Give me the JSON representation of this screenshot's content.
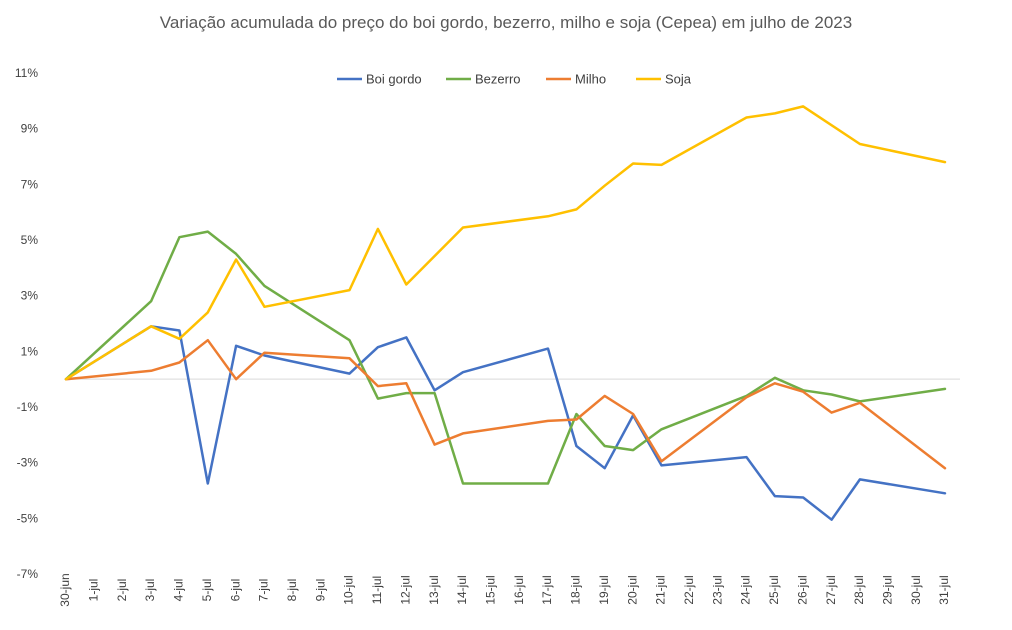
{
  "chart_data": {
    "type": "line",
    "title": "Variação acumulada do preço do boi gordo, bezerro, milho e soja (Cepea) em julho de 2023",
    "xlabel": "",
    "ylabel": "",
    "ylim": [
      -7,
      11
    ],
    "y_ticks": [
      -7,
      -5,
      -3,
      -1,
      1,
      3,
      5,
      7,
      9,
      11
    ],
    "y_tick_labels": [
      "-7%",
      "-5%",
      "-3%",
      "-1%",
      "1%",
      "3%",
      "5%",
      "7%",
      "9%",
      "11%"
    ],
    "x": [
      "30-jun",
      "1-jul",
      "2-jul",
      "3-jul",
      "4-jul",
      "5-jul",
      "6-jul",
      "7-jul",
      "8-jul",
      "9-jul",
      "10-jul",
      "11-jul",
      "12-jul",
      "13-jul",
      "14-jul",
      "15-jul",
      "16-jul",
      "17-jul",
      "18-jul",
      "19-jul",
      "20-jul",
      "21-jul",
      "22-jul",
      "23-jul",
      "24-jul",
      "25-jul",
      "26-jul",
      "27-jul",
      "28-jul",
      "29-jul",
      "30-jul",
      "31-jul"
    ],
    "legend_position": "top",
    "grid": false,
    "zero_line": true,
    "series": [
      {
        "name": "Boi gordo",
        "color": "#4472C4",
        "values": [
          0,
          null,
          null,
          1.9,
          1.75,
          -3.75,
          1.2,
          0.85,
          null,
          null,
          0.2,
          1.15,
          1.5,
          -0.4,
          0.25,
          null,
          null,
          1.1,
          -2.4,
          -3.2,
          -1.3,
          -3.1,
          null,
          null,
          -2.8,
          -4.2,
          -4.25,
          -5.05,
          -3.6,
          null,
          null,
          -4.1
        ]
      },
      {
        "name": "Bezerro",
        "color": "#70AD47",
        "values": [
          0,
          null,
          null,
          2.8,
          5.1,
          5.3,
          4.5,
          3.35,
          null,
          null,
          1.4,
          -0.7,
          -0.5,
          -0.5,
          -3.75,
          null,
          null,
          -3.75,
          -1.25,
          -2.4,
          -2.55,
          -1.8,
          null,
          null,
          -0.6,
          0.05,
          -0.4,
          -0.55,
          -0.8,
          null,
          null,
          -0.35
        ]
      },
      {
        "name": "Milho",
        "color": "#ED7D31",
        "values": [
          0,
          null,
          null,
          0.3,
          0.6,
          1.4,
          0.0,
          0.95,
          null,
          null,
          0.75,
          -0.25,
          -0.15,
          -2.35,
          -1.95,
          null,
          null,
          -1.5,
          -1.45,
          -0.6,
          -1.25,
          -2.95,
          null,
          null,
          -0.65,
          -0.15,
          -0.45,
          -1.2,
          -0.85,
          null,
          null,
          -3.2
        ]
      },
      {
        "name": "Soja",
        "color": "#FFC000",
        "values": [
          0,
          null,
          null,
          1.9,
          1.45,
          2.4,
          4.3,
          2.6,
          null,
          null,
          3.2,
          5.4,
          3.4,
          null,
          5.45,
          null,
          null,
          5.85,
          6.1,
          6.95,
          7.75,
          7.7,
          null,
          null,
          9.4,
          9.55,
          9.8,
          null,
          8.45,
          null,
          null,
          7.8
        ]
      }
    ]
  }
}
